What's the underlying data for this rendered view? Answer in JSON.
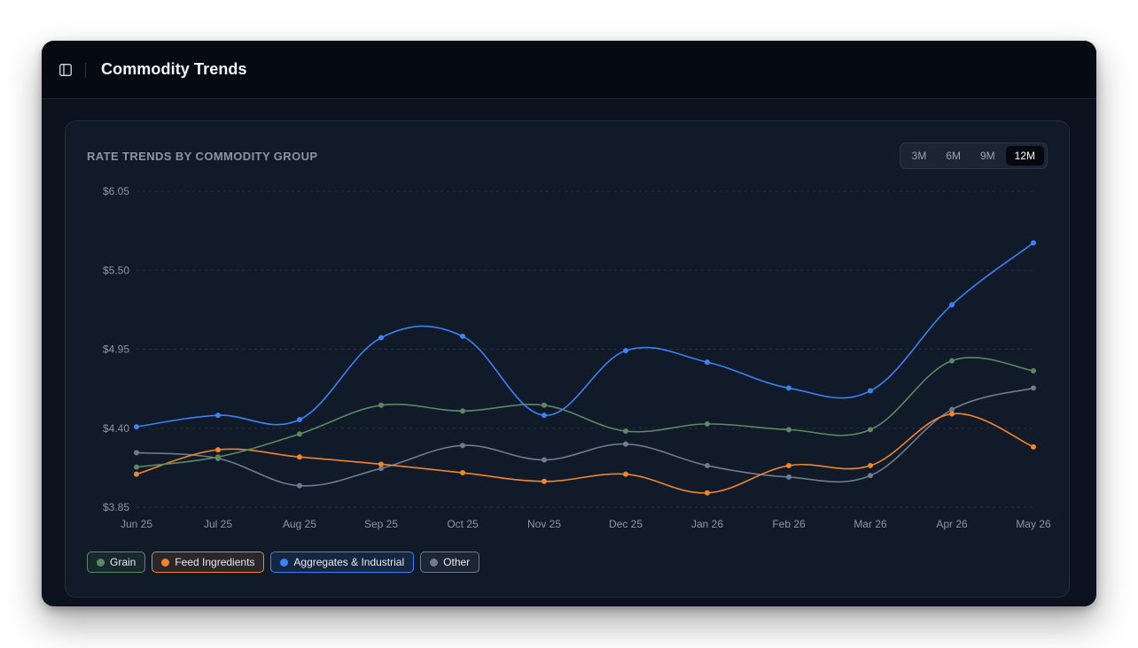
{
  "window": {
    "title": "Commodity Trends",
    "icon": "sidebar-panel-icon"
  },
  "card": {
    "title": "RATE TRENDS BY COMMODITY GROUP"
  },
  "range_tabs": [
    {
      "label": "3M",
      "active": false
    },
    {
      "label": "6M",
      "active": false
    },
    {
      "label": "9M",
      "active": false
    },
    {
      "label": "12M",
      "active": true
    }
  ],
  "colors": {
    "Grain": "#5a8a62",
    "Feed Ingredients": "#f0852a",
    "Aggregates & Industrial": "#3b82f6",
    "Other": "#6f7b8e"
  },
  "chart_data": {
    "type": "line",
    "title": "RATE TRENDS BY COMMODITY GROUP",
    "xlabel": "",
    "ylabel": "",
    "categories": [
      "Jun 25",
      "Jul 25",
      "Aug 25",
      "Sep 25",
      "Oct 25",
      "Nov 25",
      "Dec 25",
      "Jan 26",
      "Feb 26",
      "Mar 26",
      "Apr 26",
      "May 26"
    ],
    "ylim": [
      3.85,
      6.05
    ],
    "yticks": [
      "$3.85",
      "$4.40",
      "$4.95",
      "$5.50",
      "$6.05"
    ],
    "ytick_values": [
      3.85,
      4.4,
      4.95,
      5.5,
      6.05
    ],
    "grid": true,
    "legend": "bottom-left",
    "series": [
      {
        "name": "Grain",
        "values": [
          4.13,
          4.2,
          4.36,
          4.56,
          4.52,
          4.56,
          4.38,
          4.43,
          4.39,
          4.39,
          4.87,
          4.8
        ]
      },
      {
        "name": "Feed Ingredients",
        "values": [
          4.08,
          4.25,
          4.2,
          4.15,
          4.09,
          4.03,
          4.08,
          3.95,
          4.14,
          4.14,
          4.5,
          4.27
        ]
      },
      {
        "name": "Aggregates & Industrial",
        "values": [
          4.41,
          4.49,
          4.46,
          5.03,
          5.04,
          4.49,
          4.94,
          4.86,
          4.68,
          4.66,
          5.26,
          5.69
        ]
      },
      {
        "name": "Other",
        "values": [
          4.23,
          4.19,
          4.0,
          4.12,
          4.28,
          4.18,
          4.29,
          4.14,
          4.06,
          4.07,
          4.53,
          4.68
        ]
      }
    ]
  }
}
